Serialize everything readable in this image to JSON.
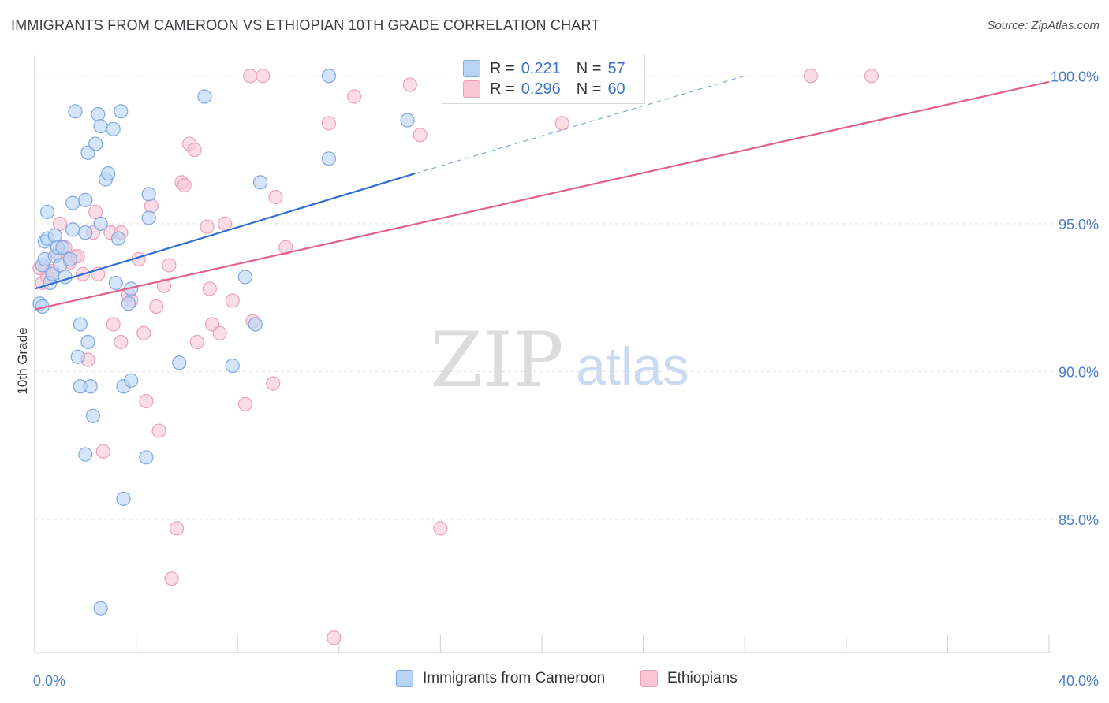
{
  "header": {
    "title": "IMMIGRANTS FROM CAMEROON VS ETHIOPIAN 10TH GRADE CORRELATION CHART",
    "source": "Source: ZipAtlas.com"
  },
  "watermark": {
    "zip": "ZIP",
    "atlas": "atlas"
  },
  "legend": {
    "r_label": "R =",
    "n_label": "N =",
    "series": [
      {
        "r": "0.221",
        "n": "57"
      },
      {
        "r": "0.296",
        "n": "60"
      }
    ]
  },
  "bottom_legend": {
    "items": [
      "Immigrants from Cameroon",
      "Ethiopians"
    ]
  },
  "chart_data": {
    "type": "scatter",
    "title": "IMMIGRANTS FROM CAMEROON VS ETHIOPIAN 10TH GRADE CORRELATION CHART",
    "xlabel": "",
    "ylabel": "10th Grade",
    "xlim": [
      0,
      40
    ],
    "ylim": [
      80.5,
      100.7
    ],
    "x_tick_labels": [
      {
        "v": 0,
        "label": "0.0%"
      },
      {
        "v": 40,
        "label": "40.0%"
      }
    ],
    "y_tick_labels": [
      {
        "v": 100,
        "label": "100.0%"
      },
      {
        "v": 95,
        "label": "95.0%"
      },
      {
        "v": 90,
        "label": "90.0%"
      },
      {
        "v": 85,
        "label": "85.0%"
      }
    ],
    "grid": true,
    "colors": {
      "cameroon_fill": "#b9d3f5",
      "cameroon_stroke": "#7fa7df",
      "cameroon_line": "#2f6fd0",
      "ethiopian_fill": "#f9c6d6",
      "ethiopian_stroke": "#eca1ba",
      "ethiopian_line": "#e0608f"
    },
    "series": [
      {
        "name": "Immigrants from Cameroon",
        "r": 0.221,
        "n": 57,
        "trend": {
          "x0": 0,
          "y0": 92.8,
          "x1": 15,
          "y1": 96.7,
          "dash_x1": 28,
          "dash_y1": 100.0
        },
        "points": [
          [
            0.2,
            92.3
          ],
          [
            0.3,
            92.2
          ],
          [
            0.3,
            93.6
          ],
          [
            0.4,
            93.8
          ],
          [
            0.4,
            94.4
          ],
          [
            0.5,
            94.5
          ],
          [
            0.5,
            95.4
          ],
          [
            0.6,
            93.0
          ],
          [
            0.7,
            93.3
          ],
          [
            0.8,
            93.9
          ],
          [
            0.8,
            94.6
          ],
          [
            0.9,
            94.2
          ],
          [
            1.0,
            93.6
          ],
          [
            1.1,
            94.2
          ],
          [
            1.2,
            93.2
          ],
          [
            1.4,
            93.8
          ],
          [
            1.5,
            94.8
          ],
          [
            1.5,
            95.7
          ],
          [
            1.6,
            98.8
          ],
          [
            1.7,
            90.5
          ],
          [
            1.8,
            91.6
          ],
          [
            1.8,
            89.5
          ],
          [
            2.0,
            94.7
          ],
          [
            2.0,
            95.8
          ],
          [
            2.1,
            97.4
          ],
          [
            2.1,
            91.0
          ],
          [
            2.2,
            89.5
          ],
          [
            2.3,
            88.5
          ],
          [
            2.0,
            87.2
          ],
          [
            2.4,
            97.7
          ],
          [
            2.5,
            98.7
          ],
          [
            2.6,
            95.0
          ],
          [
            2.6,
            82.0
          ],
          [
            2.6,
            98.3
          ],
          [
            2.8,
            96.5
          ],
          [
            2.9,
            96.7
          ],
          [
            3.1,
            98.2
          ],
          [
            3.2,
            93.0
          ],
          [
            3.3,
            94.5
          ],
          [
            3.4,
            98.8
          ],
          [
            3.5,
            85.7
          ],
          [
            3.5,
            89.5
          ],
          [
            3.7,
            92.3
          ],
          [
            3.8,
            92.8
          ],
          [
            3.8,
            89.7
          ],
          [
            4.4,
            87.1
          ],
          [
            4.5,
            96.0
          ],
          [
            4.5,
            95.2
          ],
          [
            5.7,
            90.3
          ],
          [
            6.7,
            99.3
          ],
          [
            7.8,
            90.2
          ],
          [
            8.3,
            93.2
          ],
          [
            8.7,
            91.6
          ],
          [
            8.9,
            96.4
          ],
          [
            11.6,
            97.2
          ],
          [
            11.6,
            100.0
          ],
          [
            14.7,
            98.5
          ]
        ]
      },
      {
        "name": "Ethiopians",
        "r": 0.296,
        "n": 60,
        "trend": {
          "x0": 0,
          "y0": 92.1,
          "x1": 40,
          "y1": 99.8
        },
        "points": [
          [
            0.3,
            93.0
          ],
          [
            0.4,
            93.5
          ],
          [
            0.5,
            93.2
          ],
          [
            0.7,
            93.4
          ],
          [
            0.9,
            94.0
          ],
          [
            1.0,
            95.0
          ],
          [
            1.2,
            94.2
          ],
          [
            1.4,
            93.7
          ],
          [
            1.6,
            93.9
          ],
          [
            1.7,
            93.9
          ],
          [
            1.9,
            93.3
          ],
          [
            2.1,
            90.4
          ],
          [
            2.3,
            94.7
          ],
          [
            2.4,
            95.4
          ],
          [
            2.5,
            93.3
          ],
          [
            2.7,
            87.3
          ],
          [
            3.0,
            94.7
          ],
          [
            3.1,
            91.6
          ],
          [
            3.4,
            94.7
          ],
          [
            3.4,
            91.0
          ],
          [
            3.7,
            92.6
          ],
          [
            3.8,
            92.4
          ],
          [
            4.1,
            93.8
          ],
          [
            4.3,
            91.3
          ],
          [
            4.4,
            89.0
          ],
          [
            4.6,
            95.6
          ],
          [
            4.8,
            92.2
          ],
          [
            4.9,
            88.0
          ],
          [
            5.1,
            92.9
          ],
          [
            5.3,
            93.6
          ],
          [
            5.4,
            83.0
          ],
          [
            5.6,
            84.7
          ],
          [
            5.8,
            96.4
          ],
          [
            5.9,
            96.3
          ],
          [
            6.1,
            97.7
          ],
          [
            6.3,
            97.5
          ],
          [
            6.4,
            91.0
          ],
          [
            6.8,
            94.9
          ],
          [
            6.9,
            92.8
          ],
          [
            7.0,
            91.6
          ],
          [
            7.3,
            91.3
          ],
          [
            7.5,
            95.0
          ],
          [
            7.8,
            92.4
          ],
          [
            8.3,
            88.9
          ],
          [
            8.5,
            100.0
          ],
          [
            8.6,
            91.7
          ],
          [
            9.0,
            100.0
          ],
          [
            9.4,
            89.6
          ],
          [
            9.5,
            95.9
          ],
          [
            9.9,
            94.2
          ],
          [
            11.6,
            98.4
          ],
          [
            11.8,
            81.0
          ],
          [
            12.6,
            99.3
          ],
          [
            14.8,
            99.7
          ],
          [
            15.2,
            98.0
          ],
          [
            16.0,
            84.7
          ],
          [
            20.8,
            98.4
          ],
          [
            30.6,
            100.0
          ],
          [
            33.0,
            100.0
          ],
          [
            0.2,
            93.5
          ]
        ]
      }
    ]
  }
}
